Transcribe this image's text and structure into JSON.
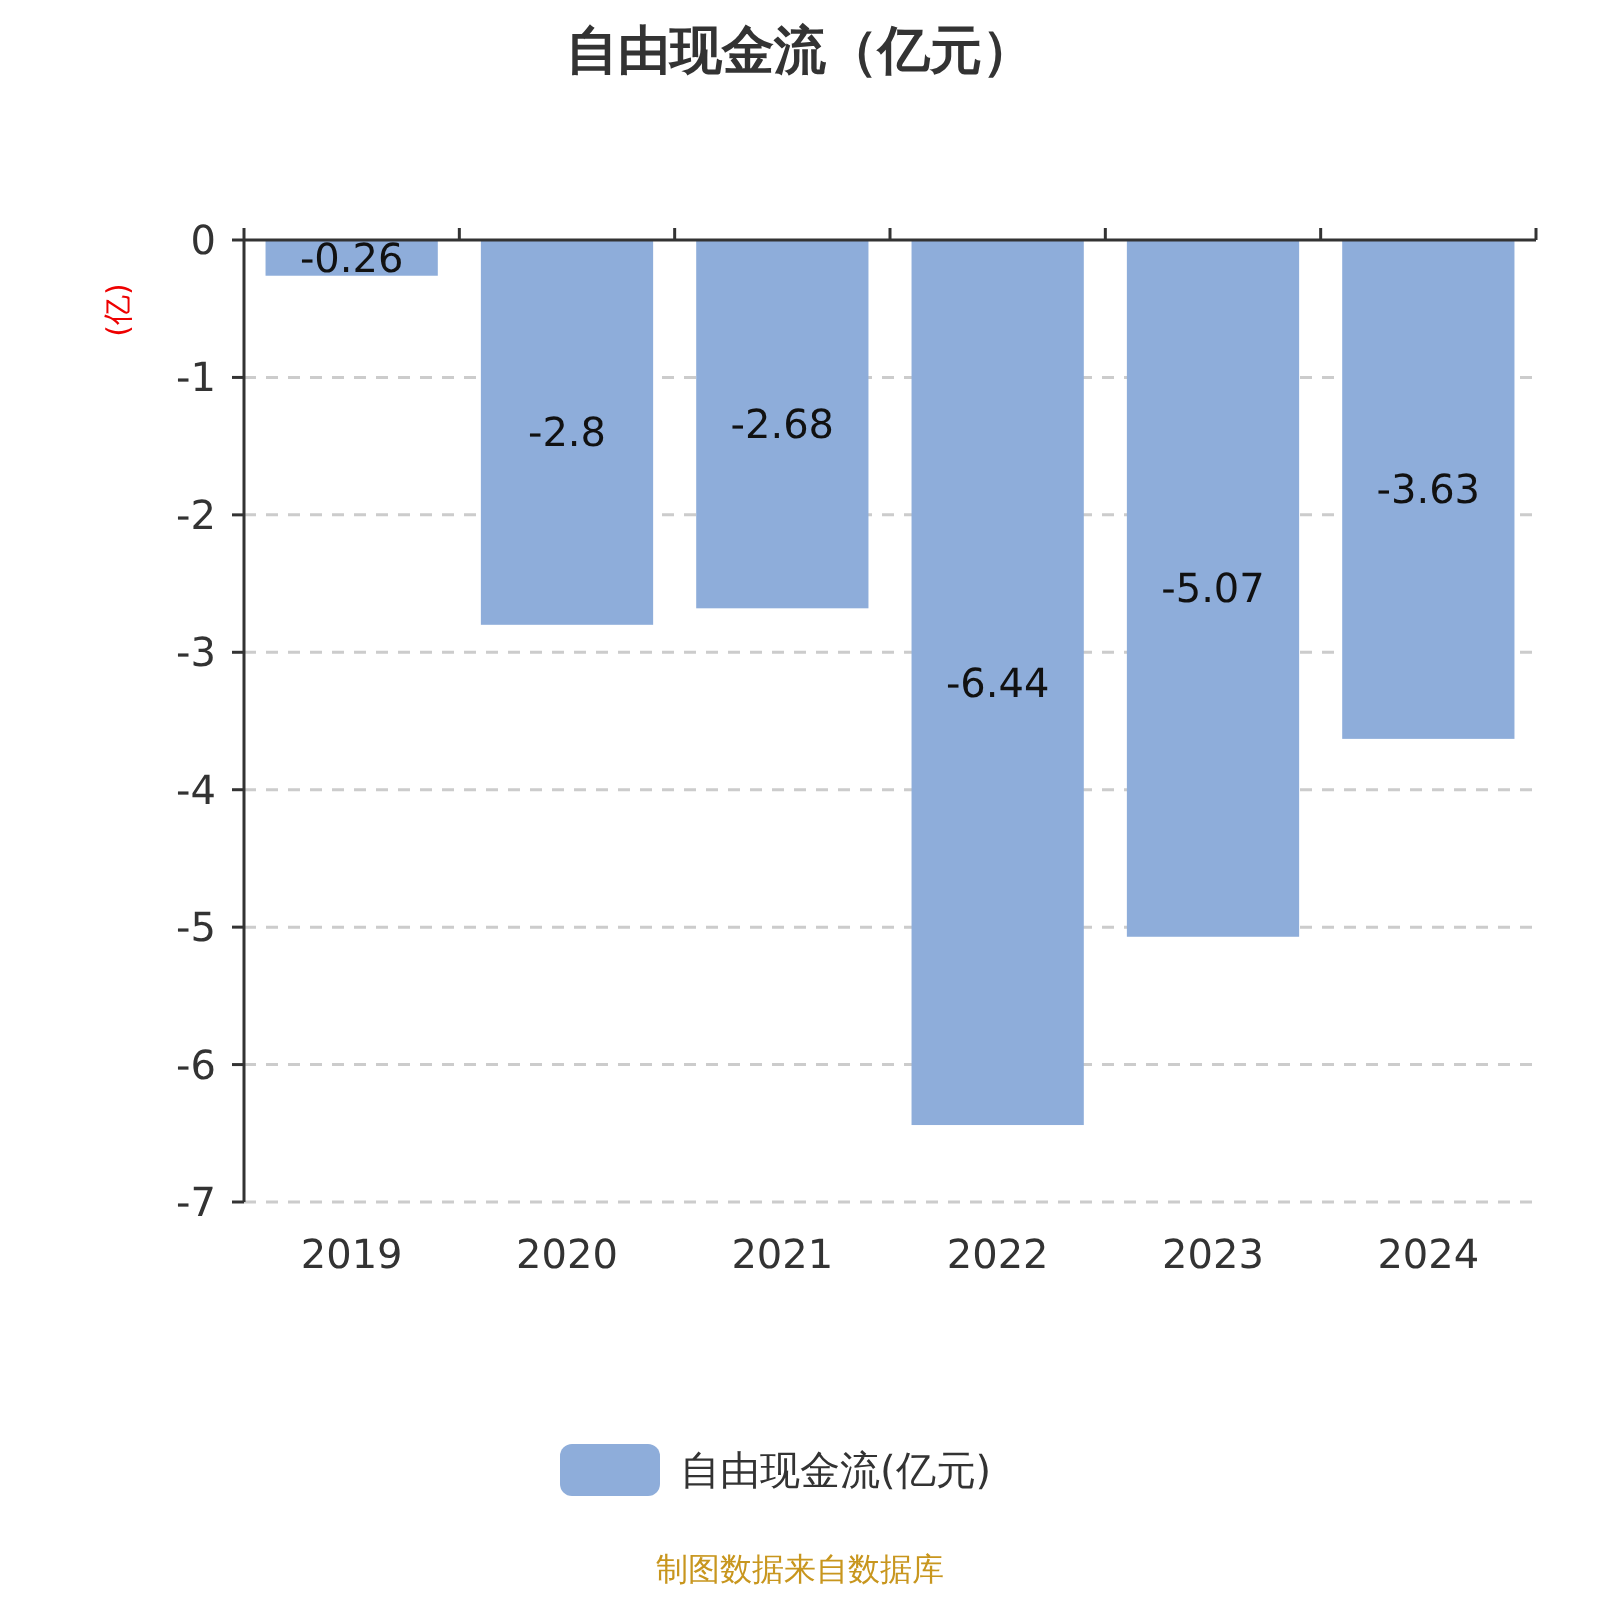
{
  "chart_data": {
    "type": "bar",
    "title": "自由现金流（亿元）",
    "ylabel": "(亿)",
    "categories": [
      "2019",
      "2020",
      "2021",
      "2022",
      "2023",
      "2024"
    ],
    "series": [
      {
        "name": "自由现金流(亿元)",
        "color": "#8eadda",
        "values": [
          -0.26,
          -2.8,
          -2.68,
          -6.44,
          -5.07,
          -3.63
        ]
      }
    ],
    "ylim": [
      -7,
      0
    ],
    "yticks": [
      0,
      -1,
      -2,
      -3,
      -4,
      -5,
      -6,
      -7
    ],
    "grid": "y",
    "legend": "bottom",
    "data_labels": true,
    "annotations": [
      "制图数据来自数据库"
    ]
  }
}
